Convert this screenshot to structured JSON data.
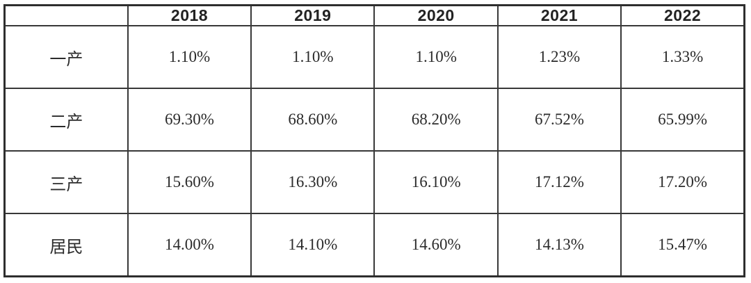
{
  "colors": {
    "background": "#ffffff",
    "border": "#383838",
    "text": "#2b2b2b"
  },
  "table": {
    "corner_label": "",
    "columns": [
      "2018",
      "2019",
      "2020",
      "2021",
      "2022"
    ],
    "rows": [
      {
        "label": "一产",
        "values": [
          "1.10%",
          "1.10%",
          "1.10%",
          "1.23%",
          "1.33%"
        ]
      },
      {
        "label": "二产",
        "values": [
          "69.30%",
          "68.60%",
          "68.20%",
          "67.52%",
          "65.99%"
        ]
      },
      {
        "label": "三产",
        "values": [
          "15.60%",
          "16.30%",
          "16.10%",
          "17.12%",
          "17.20%"
        ]
      },
      {
        "label": "居民",
        "values": [
          "14.00%",
          "14.10%",
          "14.60%",
          "14.13%",
          "15.47%"
        ]
      }
    ]
  },
  "chart_data": {
    "type": "table",
    "title": "",
    "categories": [
      "2018",
      "2019",
      "2020",
      "2021",
      "2022"
    ],
    "series": [
      {
        "name": "一产",
        "values": [
          1.1,
          1.1,
          1.1,
          1.23,
          1.33
        ]
      },
      {
        "name": "二产",
        "values": [
          69.3,
          68.6,
          68.2,
          67.52,
          65.99
        ]
      },
      {
        "name": "三产",
        "values": [
          15.6,
          16.3,
          16.1,
          17.12,
          17.2
        ]
      },
      {
        "name": "居民",
        "values": [
          14.0,
          14.1,
          14.6,
          14.13,
          15.47
        ]
      }
    ],
    "unit": "%"
  }
}
